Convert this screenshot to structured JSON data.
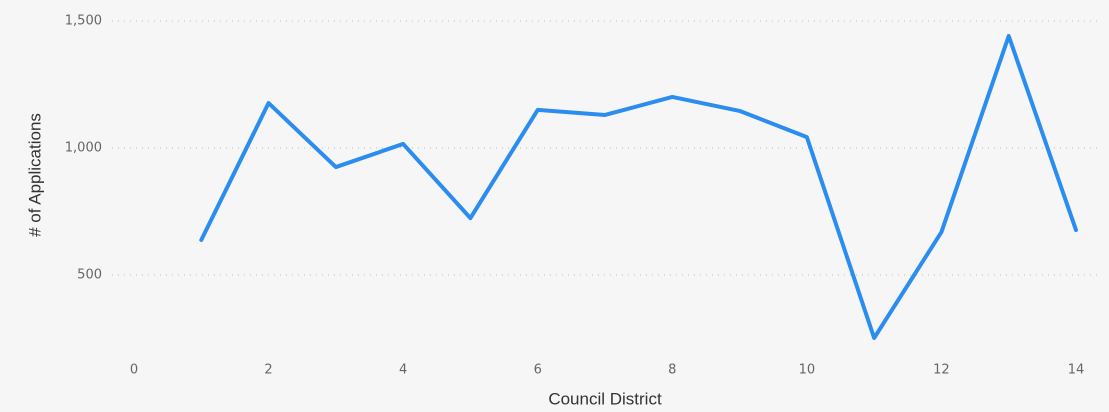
{
  "chart_data": {
    "type": "line",
    "x_label": "Council District",
    "y_label": "# of Applications",
    "x": [
      1,
      2,
      3,
      4,
      5,
      6,
      7,
      8,
      9,
      10,
      11,
      12,
      13,
      14
    ],
    "series": [
      {
        "color": "#2b8def",
        "values": [
          638,
          1177,
          925,
          1016,
          724,
          1150,
          1130,
          1201,
          1146,
          1043,
          252,
          669,
          1441,
          677
        ]
      }
    ],
    "xlim": [
      0,
      14
    ],
    "xticks": [
      0,
      2,
      4,
      6,
      8,
      10,
      12,
      14
    ],
    "ylim": [
      200,
      1550
    ],
    "yticks": [
      {
        "value": 500,
        "label": "500"
      },
      {
        "value": 1000,
        "label": "1,000"
      },
      {
        "value": 1500,
        "label": "1,500"
      }
    ],
    "grid": true
  }
}
